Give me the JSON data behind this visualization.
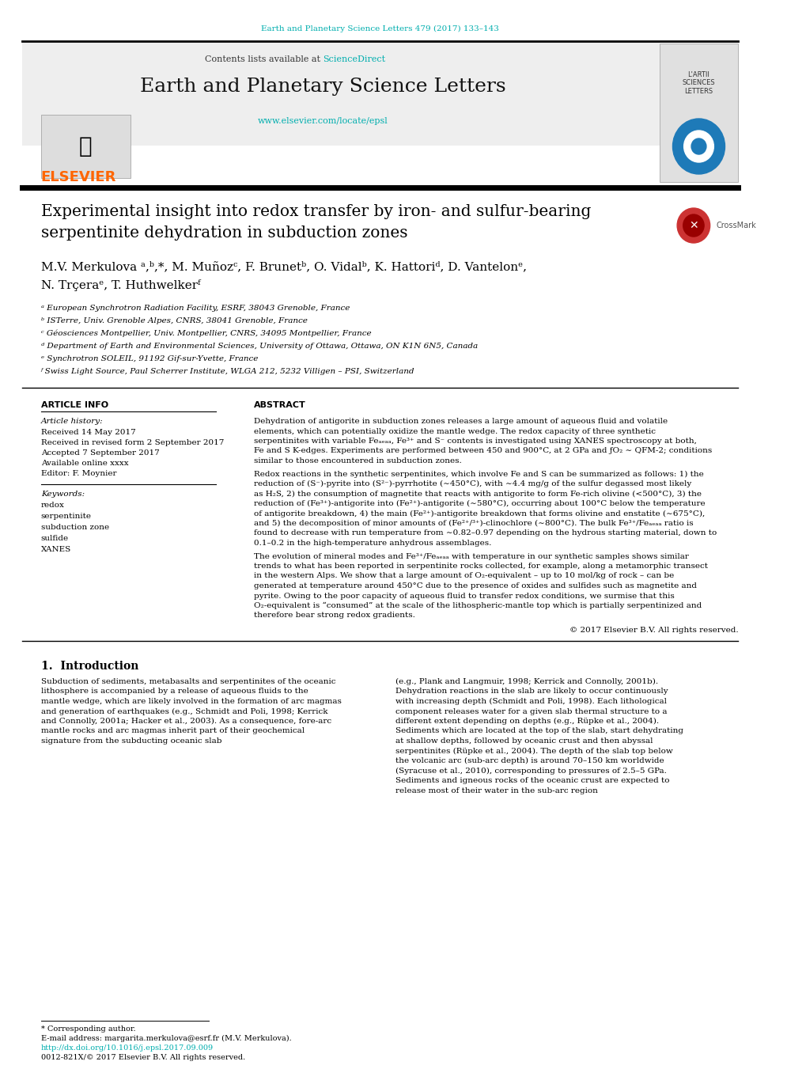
{
  "journal_line": "Earth and Planetary Science Letters 479 (2017) 133–143",
  "journal_line_color": "#00AEAE",
  "header_bg_color": "#EEEEEE",
  "journal_name": "Earth and Planetary Science Letters",
  "elsevier_color": "#FF6600",
  "elsevier_text": "ELSEVIER",
  "sciencedirect_text": "ScienceDirect",
  "sciencedirect_color": "#00AEAE",
  "contents_text": "Contents lists available at ",
  "url_text": "www.elsevier.com/locate/epsl",
  "url_color": "#00AEAE",
  "title": "Experimental insight into redox transfer by iron- and sulfur-bearing\nserpentinite dehydration in subduction zones",
  "authors": "M.V. Merkulova ᵃ,ᵇ,*, M. Muñozᶜ, F. Brunetᵇ, O. Vidalᵇ, K. Hattoriᵈ, D. Vantelonᵉ,\nN. Trçeraᵉ, T. Huthwelkerᶠ",
  "affil_a": "ᵃ European Synchrotron Radiation Facility, ESRF, 38043 Grenoble, France",
  "affil_b": "ᵇ ISTerre, Univ. Grenoble Alpes, CNRS, 38041 Grenoble, France",
  "affil_c": "ᶜ Géosciences Montpellier, Univ. Montpellier, CNRS, 34095 Montpellier, France",
  "affil_d": "ᵈ Department of Earth and Environmental Sciences, University of Ottawa, Ottawa, ON K1N 6N5, Canada",
  "affil_e": "ᵉ Synchrotron SOLEIL, 91192 Gif-sur-Yvette, France",
  "affil_f": "ᶠ Swiss Light Source, Paul Scherrer Institute, WLGA 212, 5232 Villigen – PSI, Switzerland",
  "article_info_header": "ARTICLE INFO",
  "abstract_header": "ABSTRACT",
  "article_history_label": "Article history:",
  "received1": "Received 14 May 2017",
  "received2": "Received in revised form 2 September 2017",
  "accepted": "Accepted 7 September 2017",
  "available": "Available online xxxx",
  "editor": "Editor: F. Moynier",
  "keywords_label": "Keywords:",
  "keywords": [
    "redox",
    "serpentinite",
    "subduction zone",
    "sulfide",
    "XANES"
  ],
  "abstract_text": "Dehydration of antigorite in subduction zones releases a large amount of aqueous fluid and volatile elements, which can potentially oxidize the mantle wedge. The redox capacity of three synthetic serpentinites with variable Feₐₑₐₐ, Fe³⁺ and S⁻ contents is investigated using XANES spectroscopy at both, Fe and S K-edges. Experiments are performed between 450 and 900°C, at 2 GPa and ƒO₂ ∼ QFM-2; conditions similar to those encountered in subduction zones.\nRedox reactions in the synthetic serpentinites, which involve Fe and S can be summarized as follows: 1) the reduction of (S⁻)-pyrite into (S²⁻)-pyrrhotite (∼450°C), with ∼4.4 mg/g of the sulfur degassed most likely as H₂S, 2) the consumption of magnetite that reacts with antigorite to form Fe-rich olivine (<500°C), 3) the reduction of (Fe³⁺)-antigorite into (Fe²⁺)-antigorite (∼580°C), occurring about 100°C below the temperature of antigorite breakdown, 4) the main (Fe²⁺)-antigorite breakdown that forms olivine and enstatite (∼675°C), and 5) the decomposition of minor amounts of (Fe²⁺/³⁺)-clinochlore (∼800°C). The bulk Fe³⁺/Feₐₑₐₐ ratio is found to decrease with run temperature from ∼0.82–0.97 depending on the hydrous starting material, down to 0.1–0.2 in the high-temperature anhydrous assemblages.\nThe evolution of mineral modes and Fe³⁺/Feₐₑₐₐ with temperature in our synthetic samples shows similar trends to what has been reported in serpentinite rocks collected, for example, along a metamorphic transect in the western Alps. We show that a large amount of O₂-equivalent – up to 10 mol/kg of rock – can be generated at temperature around 450°C due to the presence of oxides and sulfides such as magnetite and pyrite. Owing to the poor capacity of aqueous fluid to transfer redox conditions, we surmise that this O₂-equivalent is “consumed” at the scale of the lithospheric-mantle top which is partially serpentinized and therefore bear strong redox gradients.",
  "copyright": "© 2017 Elsevier B.V. All rights reserved.",
  "intro_header": "1.  Introduction",
  "intro_col1": "Subduction of sediments, metabasalts and serpentinites of the oceanic lithosphere is accompanied by a release of aqueous fluids to the mantle wedge, which are likely involved in the formation of arc magmas and generation of earthquakes (e.g., Schmidt and Poli, 1998; Kerrick and Connolly, 2001a; Hacker et al., 2003). As a consequence, fore-arc mantle rocks and arc magmas inherit part of their geochemical signature from the subducting oceanic slab",
  "intro_col2": "(e.g., Plank and Langmuir, 1998; Kerrick and Connolly, 2001b). Dehydration reactions in the slab are likely to occur continuously with increasing depth (Schmidt and Poli, 1998). Each lithological component releases water for a given slab thermal structure to a different extent depending on depths (e.g., Rüpke et al., 2004). Sediments which are located at the top of the slab, start dehydrating at shallow depths, followed by oceanic crust and then abyssal serpentinites (Rüpke et al., 2004). The depth of the slab top below the volcanic arc (sub-arc depth) is around 70–150 km worldwide (Syracuse et al., 2010), corresponding to pressures of 2.5–5 GPa.\n    Sediments and igneous rocks of the oceanic crust are expected to release most of their water in the sub-arc region",
  "footnote_star": "* Corresponding author.",
  "footnote_email": "E-mail address: margarita.merkulova@esrf.fr (M.V. Merkulova).",
  "footnote_doi": "http://dx.doi.org/10.1016/j.epsl.2017.09.009",
  "footnote_issn": "0012-821X/© 2017 Elsevier B.V. All rights reserved.",
  "bg_color": "#FFFFFF",
  "text_color": "#000000",
  "separator_color": "#000000"
}
